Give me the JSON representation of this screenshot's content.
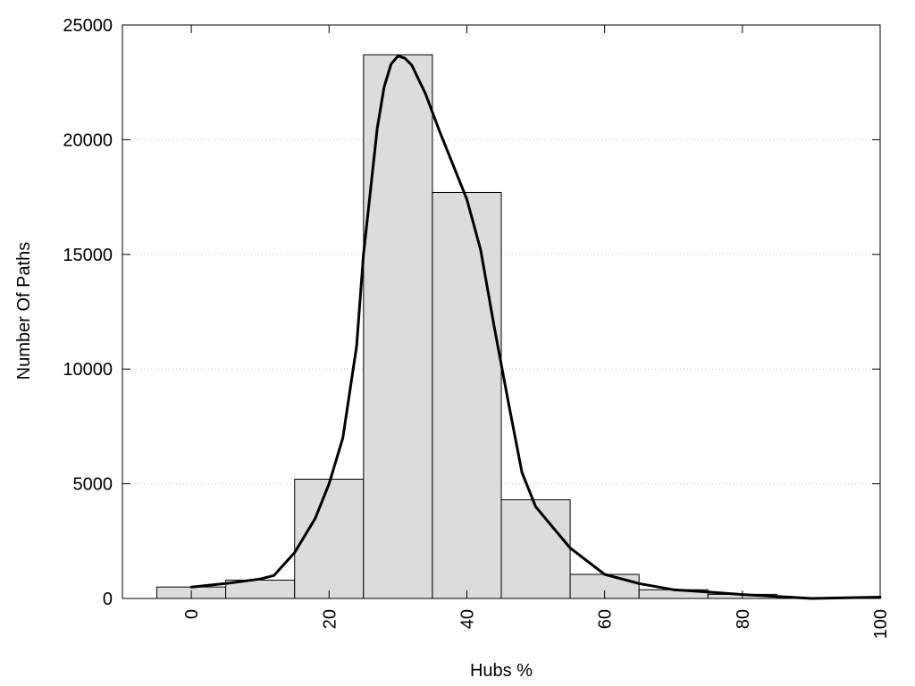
{
  "chart_data": {
    "type": "bar",
    "xlabel": "Hubs %",
    "ylabel": "Number Of Paths",
    "xlim": [
      -10,
      100
    ],
    "ylim": [
      0,
      25000
    ],
    "x_ticks": [
      0,
      20,
      40,
      60,
      80,
      100
    ],
    "y_ticks": [
      0,
      5000,
      10000,
      15000,
      20000,
      25000
    ],
    "grid": "horizontal dotted",
    "bin_width": 10,
    "bars": [
      {
        "x": 0,
        "value": 500
      },
      {
        "x": 10,
        "value": 800
      },
      {
        "x": 20,
        "value": 5200
      },
      {
        "x": 30,
        "value": 23700
      },
      {
        "x": 40,
        "value": 17700
      },
      {
        "x": 50,
        "value": 4300
      },
      {
        "x": 60,
        "value": 1050
      },
      {
        "x": 70,
        "value": 380
      },
      {
        "x": 80,
        "value": 180
      },
      {
        "x": 90,
        "value": 0
      }
    ],
    "density_curve": {
      "x": [
        0,
        5,
        10,
        12,
        15,
        18,
        20,
        22,
        24,
        25,
        27,
        28,
        29,
        30,
        31,
        32,
        34,
        36,
        38,
        40,
        42,
        44,
        46,
        48,
        50,
        55,
        60,
        65,
        70,
        75,
        80,
        85,
        90,
        95,
        100
      ],
      "y": [
        500,
        650,
        850,
        1000,
        2000,
        3500,
        5000,
        7000,
        11000,
        15000,
        20500,
        22300,
        23300,
        23650,
        23550,
        23250,
        22000,
        20400,
        18900,
        17400,
        15200,
        11800,
        8600,
        5500,
        4000,
        2200,
        1050,
        650,
        380,
        280,
        170,
        90,
        0,
        30,
        60
      ]
    },
    "colors": {
      "bar_fill": "#dcdcdc",
      "bar_stroke": "#000000",
      "curve": "#000000",
      "grid": "#bdbdbd"
    }
  }
}
